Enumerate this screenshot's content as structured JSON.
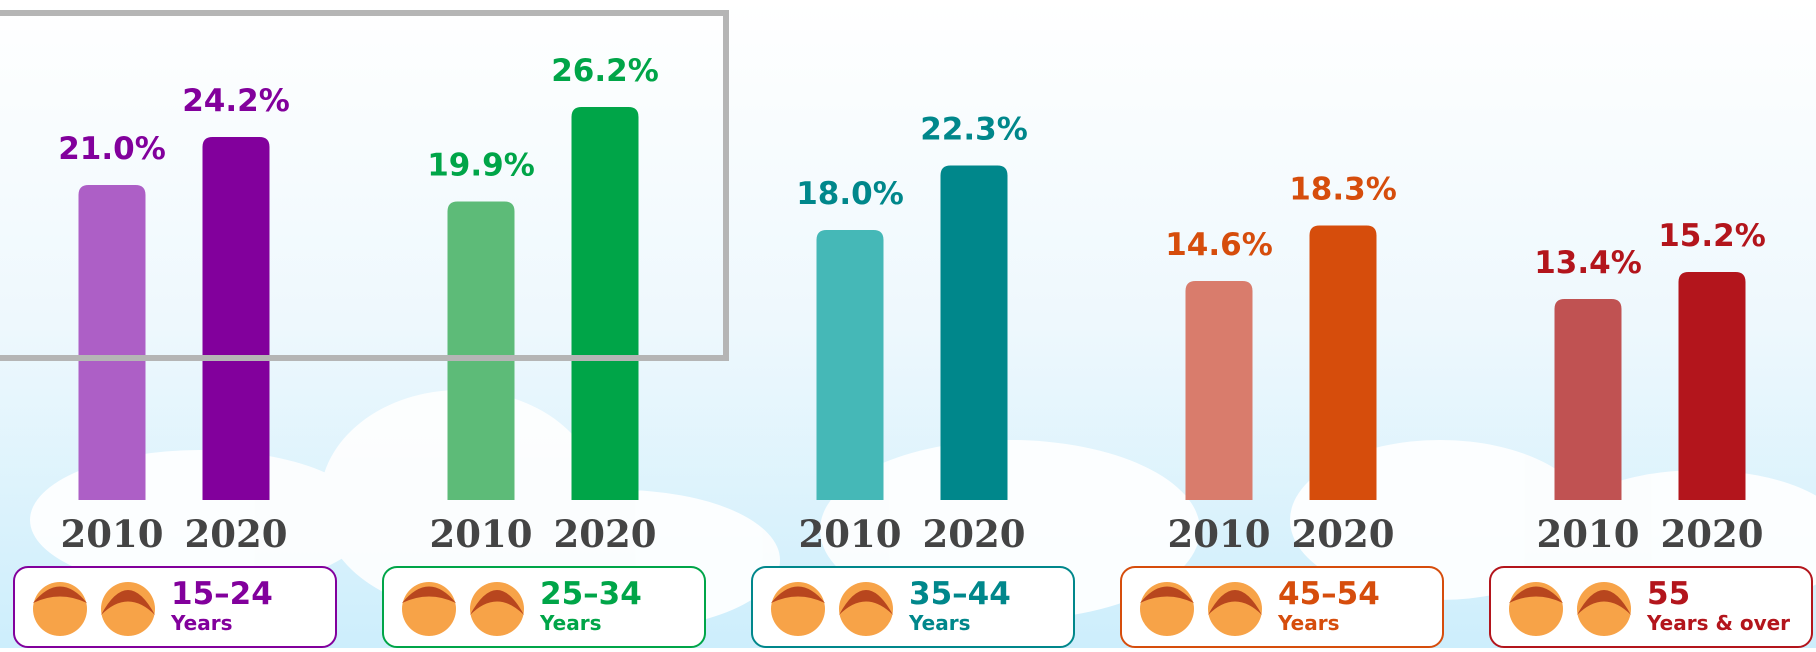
{
  "chart_data": {
    "type": "bar",
    "categories": [
      "15–24",
      "25–34",
      "35–44",
      "45–54",
      "55"
    ],
    "category_sublabels": [
      "Years",
      "Years",
      "Years",
      "Years",
      "Years & over"
    ],
    "series": [
      {
        "name": "2010",
        "values": [
          21.0,
          19.9,
          18.0,
          14.6,
          13.4
        ],
        "value_labels": [
          "21.0%",
          "19.9%",
          "18.0%",
          "14.6%",
          "13.4%"
        ],
        "colors": [
          "#ad5fc6",
          "#5dbb78",
          "#45b8b7",
          "#d97c6c",
          "#c05252"
        ]
      },
      {
        "name": "2020",
        "values": [
          24.2,
          26.2,
          22.3,
          18.3,
          15.2
        ],
        "value_labels": [
          "24.2%",
          "26.2%",
          "22.3%",
          "18.3%",
          "15.2%"
        ],
        "colors": [
          "#82009c",
          "#00a548",
          "#00878b",
          "#d64d0c",
          "#b3151c"
        ]
      }
    ]
  }
}
